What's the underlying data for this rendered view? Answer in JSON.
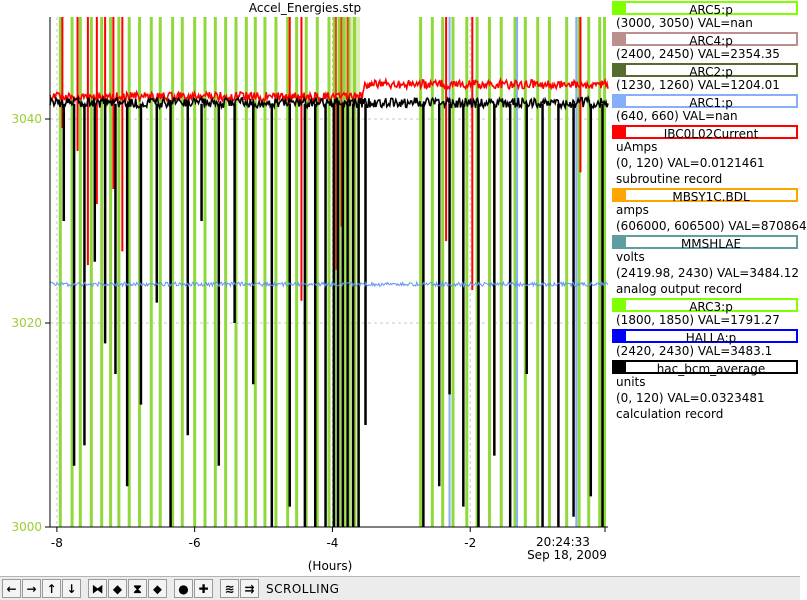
{
  "window_title": "Accel_Energies.stp",
  "chart_data": {
    "type": "line",
    "title": "Accel_Energies.stp",
    "xlabel": "(Hours)",
    "x_ticks": [
      "-8",
      "-6",
      "-4",
      "-2"
    ],
    "x_ticks_hours": [
      -8,
      -6,
      -4,
      -2
    ],
    "x_range_hours": [
      -8.1,
      0.0
    ],
    "current_time_label": "20:24:33",
    "current_date_label": "Sep 18, 2009",
    "y_ticks": [
      "3000",
      "3020",
      "3040"
    ],
    "y_tick_values": [
      3000,
      3020,
      3040
    ],
    "y_range": [
      3000,
      3050
    ],
    "ytick_color": "#9acd32",
    "grid": true,
    "legend_position": "right",
    "series": [
      {
        "color": "#ff0000",
        "level": 3042.2,
        "noise": 0.45,
        "step_at": -3.55,
        "level_after": 3043.4
      },
      {
        "color": "#000000",
        "level": 3041.6,
        "noise": 0.5,
        "step_at": null,
        "level_after": 3041.0
      },
      {
        "color": "#6495ed",
        "level": 3023.8,
        "noise": 0.2,
        "step_at": null,
        "level_after": 3023.8
      }
    ],
    "spikes_green_hours": [
      -7.95,
      -7.78,
      -7.66,
      -7.5,
      -7.35,
      -7.22,
      -7.1,
      -6.95,
      -6.8,
      -6.63,
      -6.5,
      -6.32,
      -6.18,
      -6.0,
      -5.85,
      -5.7,
      -5.55,
      -5.4,
      -5.25,
      -5.12,
      -4.98,
      -4.82,
      -4.65,
      -4.52,
      -4.38,
      -4.22,
      -4.05,
      -3.97,
      -3.9,
      -3.83,
      -3.76,
      -3.68,
      -2.72,
      -2.55,
      -2.4,
      -2.25,
      -2.05,
      -1.9,
      -1.72,
      -1.55,
      -1.35,
      -1.2,
      -1.02,
      -0.85,
      -0.6,
      -0.42,
      -0.28,
      -0.12,
      -0.05
    ],
    "spikes_red_hours": [
      -7.92,
      -7.7,
      -7.55,
      -7.42,
      -7.3,
      -7.18,
      -7.05,
      -4.62,
      -4.45,
      -3.95,
      -3.87,
      -3.78,
      -2.35,
      -1.97,
      -0.4
    ],
    "spikes_blue_hours": [
      -2.3,
      -1.32,
      -0.46
    ],
    "black_drops_hours": [
      -7.9,
      -7.75,
      -7.6,
      -7.45,
      -7.3,
      -7.15,
      -6.98,
      -6.78,
      -6.55,
      -6.35,
      -6.1,
      -5.9,
      -5.65,
      -5.42,
      -5.15,
      -4.88,
      -4.62,
      -4.4,
      -4.25,
      -4.1,
      -3.98,
      -3.92,
      -3.85,
      -3.78,
      -3.7,
      -3.62,
      -3.52,
      -2.68,
      -2.45,
      -2.3,
      -2.1,
      -1.88,
      -1.65,
      -1.42,
      -1.18,
      -0.95,
      -0.72,
      -0.5,
      -0.25,
      -0.08
    ],
    "black_drop_depth_values": [
      3030,
      3006,
      3008,
      3026,
      3018,
      3015,
      3004,
      3012,
      3022,
      3000,
      3009,
      3030,
      3006,
      3020,
      3014,
      3000,
      3002,
      3000,
      3000,
      3000,
      3000,
      3000,
      3000,
      3000,
      3000,
      3000,
      3010,
      3000,
      3004,
      3013,
      3002,
      3000,
      3007,
      3000,
      3015,
      3000,
      3000,
      3001,
      3003,
      3000
    ]
  },
  "legend": [
    {
      "name": "ARC5:p",
      "color": "#7fff00",
      "lines": [
        "(3000, 3050) VAL=nan"
      ]
    },
    {
      "name": "ARC4:p",
      "color": "#bc8f8f",
      "lines": [
        "(2400, 2450) VAL=2354.35"
      ]
    },
    {
      "name": "ARC2:p",
      "color": "#556b2f",
      "lines": [
        "(1230, 1260) VAL=1204.01"
      ]
    },
    {
      "name": "ARC1:p",
      "color": "#87aefa",
      "lines": [
        "(640, 660) VAL=nan"
      ]
    },
    {
      "name": "IBC0L02Current",
      "color": "#ff0000",
      "lines": [
        "uAmps",
        "(0, 120) VAL=0.0121461",
        "subroutine record"
      ]
    },
    {
      "name": "MBSY1C.BDL",
      "color": "#ffa500",
      "lines": [
        "amps",
        "(606000, 606500) VAL=870864"
      ]
    },
    {
      "name": "MMSHLAE",
      "color": "#5f9ea0",
      "lines": [
        "volts",
        "(2419.98, 2430)  VAL=3484.12",
        "analog output record"
      ]
    },
    {
      "name": "ARC3:p",
      "color": "#7fff00",
      "lines": [
        "(1800, 1850) VAL=1791.27"
      ]
    },
    {
      "name": "HALLA:p",
      "color": "#0000ff",
      "lines": [
        "(2420, 2430) VAL=3483.1"
      ]
    },
    {
      "name": "hac_bcm_average",
      "color": "#000000",
      "lines": [
        "units",
        "(0, 120) VAL=0.0323481",
        "calculation record"
      ]
    }
  ],
  "toolbar": {
    "status_text": "SCROLLING",
    "buttons": [
      {
        "name": "pan-left-button",
        "icon": "arrow-left-icon",
        "glyph": "←"
      },
      {
        "name": "pan-right-button",
        "icon": "arrow-right-icon",
        "glyph": "→"
      },
      {
        "name": "pan-up-button",
        "icon": "arrow-up-icon",
        "glyph": "↑"
      },
      {
        "name": "pan-down-button",
        "icon": "arrow-down-icon",
        "glyph": "↓"
      },
      {
        "name": "zoom-x-in-button",
        "icon": "zoom-x-in-icon",
        "glyph": "⧓"
      },
      {
        "name": "zoom-x-out-button",
        "icon": "zoom-x-out-icon",
        "glyph": "◆"
      },
      {
        "name": "zoom-y-in-button",
        "icon": "zoom-y-in-icon",
        "glyph": "⧗"
      },
      {
        "name": "zoom-y-out-button",
        "icon": "zoom-y-out-icon",
        "glyph": "⬥"
      },
      {
        "name": "auto-scale-button",
        "icon": "auto-scale-icon",
        "glyph": "●"
      },
      {
        "name": "add-pv-button",
        "icon": "plus-icon",
        "glyph": "✚"
      },
      {
        "name": "config-button",
        "icon": "config-icon",
        "glyph": "≋"
      },
      {
        "name": "scroll-mode-button",
        "icon": "scroll-mode-icon",
        "glyph": "⇉"
      }
    ]
  }
}
